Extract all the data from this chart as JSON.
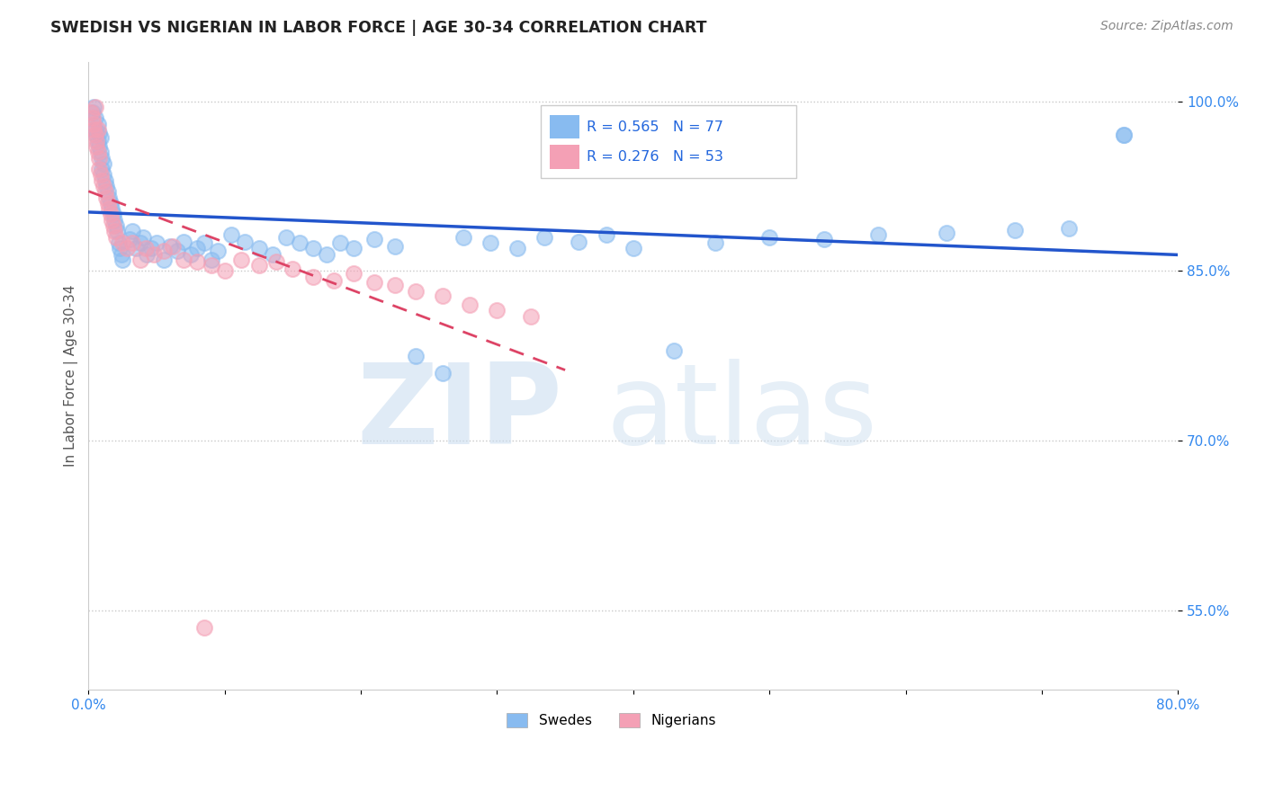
{
  "title": "SWEDISH VS NIGERIAN IN LABOR FORCE | AGE 30-34 CORRELATION CHART",
  "source": "Source: ZipAtlas.com",
  "ylabel": "In Labor Force | Age 30-34",
  "xlim": [
    0.0,
    0.8
  ],
  "ylim": [
    0.48,
    1.035
  ],
  "xticks": [
    0.0,
    0.1,
    0.2,
    0.3,
    0.4,
    0.5,
    0.6,
    0.7,
    0.8
  ],
  "xticklabels": [
    "0.0%",
    "",
    "",
    "",
    "",
    "",
    "",
    "",
    "80.0%"
  ],
  "ytick_positions": [
    0.55,
    0.7,
    0.85,
    1.0
  ],
  "ytick_labels": [
    "55.0%",
    "70.0%",
    "85.0%",
    "100.0%"
  ],
  "swede_R": 0.565,
  "swede_N": 77,
  "nigerian_R": 0.276,
  "nigerian_N": 53,
  "swede_color": "#88BBF0",
  "nigerian_color": "#F4A0B5",
  "swede_line_color": "#2255CC",
  "nigerian_line_color": "#DD4466",
  "legend_swede": "Swedes",
  "legend_nigerian": "Nigerians",
  "watermark_zip": "ZIP",
  "watermark_atlas": "atlas"
}
